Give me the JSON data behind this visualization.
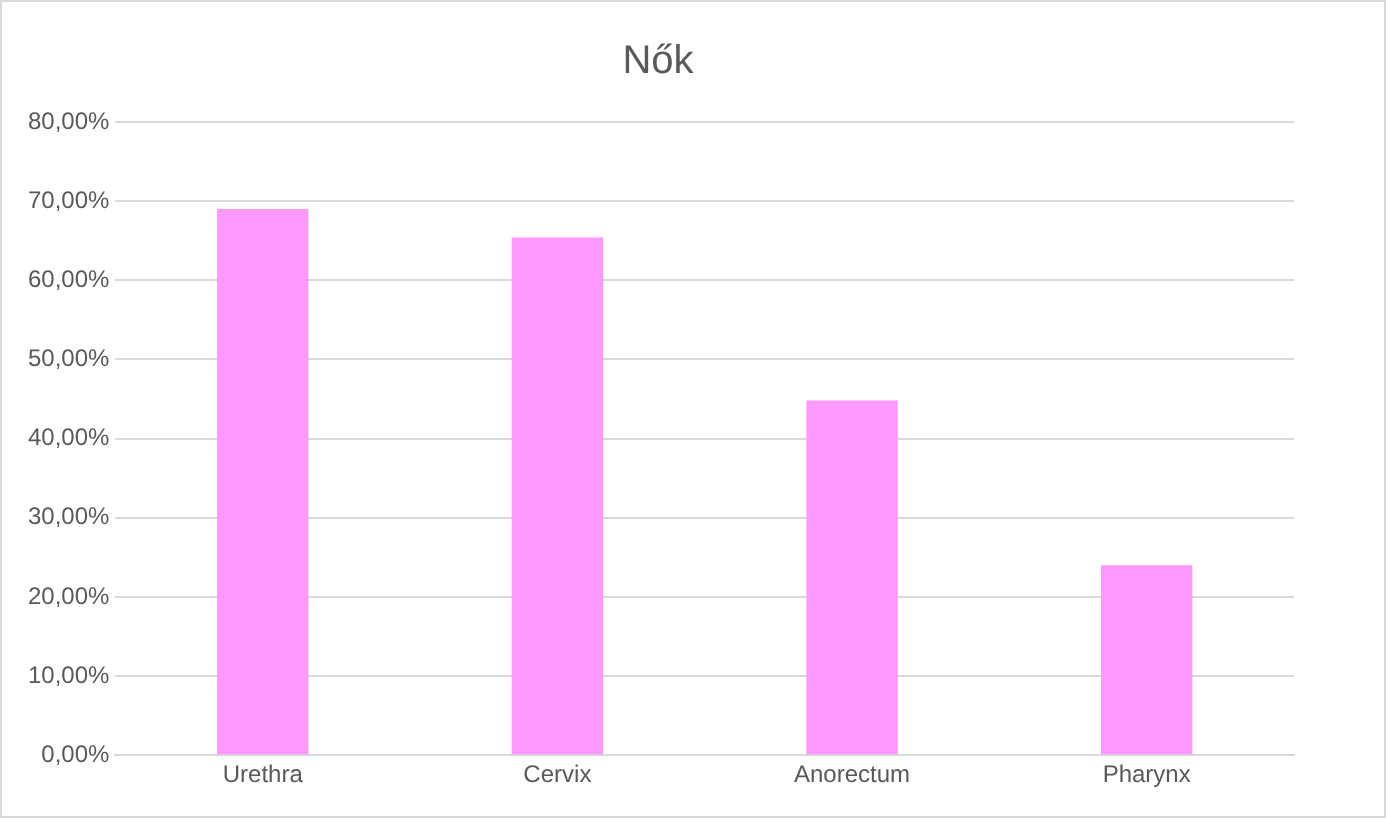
{
  "chart_data": {
    "type": "bar",
    "title": "Nők",
    "categories": [
      "Urethra",
      "Cervix",
      "Anorectum",
      "Pharynx"
    ],
    "values": [
      69,
      65.4,
      44.8,
      24
    ],
    "color": "#ff99ff",
    "ylim": [
      0,
      80
    ],
    "yticks": [
      {
        "value": 0,
        "label": "0,00%"
      },
      {
        "value": 10,
        "label": "10,00%"
      },
      {
        "value": 20,
        "label": "20,00%"
      },
      {
        "value": 30,
        "label": "30,00%"
      },
      {
        "value": 40,
        "label": "40,00%"
      },
      {
        "value": 50,
        "label": "50,00%"
      },
      {
        "value": 60,
        "label": "60,00%"
      },
      {
        "value": 70,
        "label": "70,00%"
      },
      {
        "value": 80,
        "label": "80,00%"
      }
    ],
    "grid": "y"
  }
}
